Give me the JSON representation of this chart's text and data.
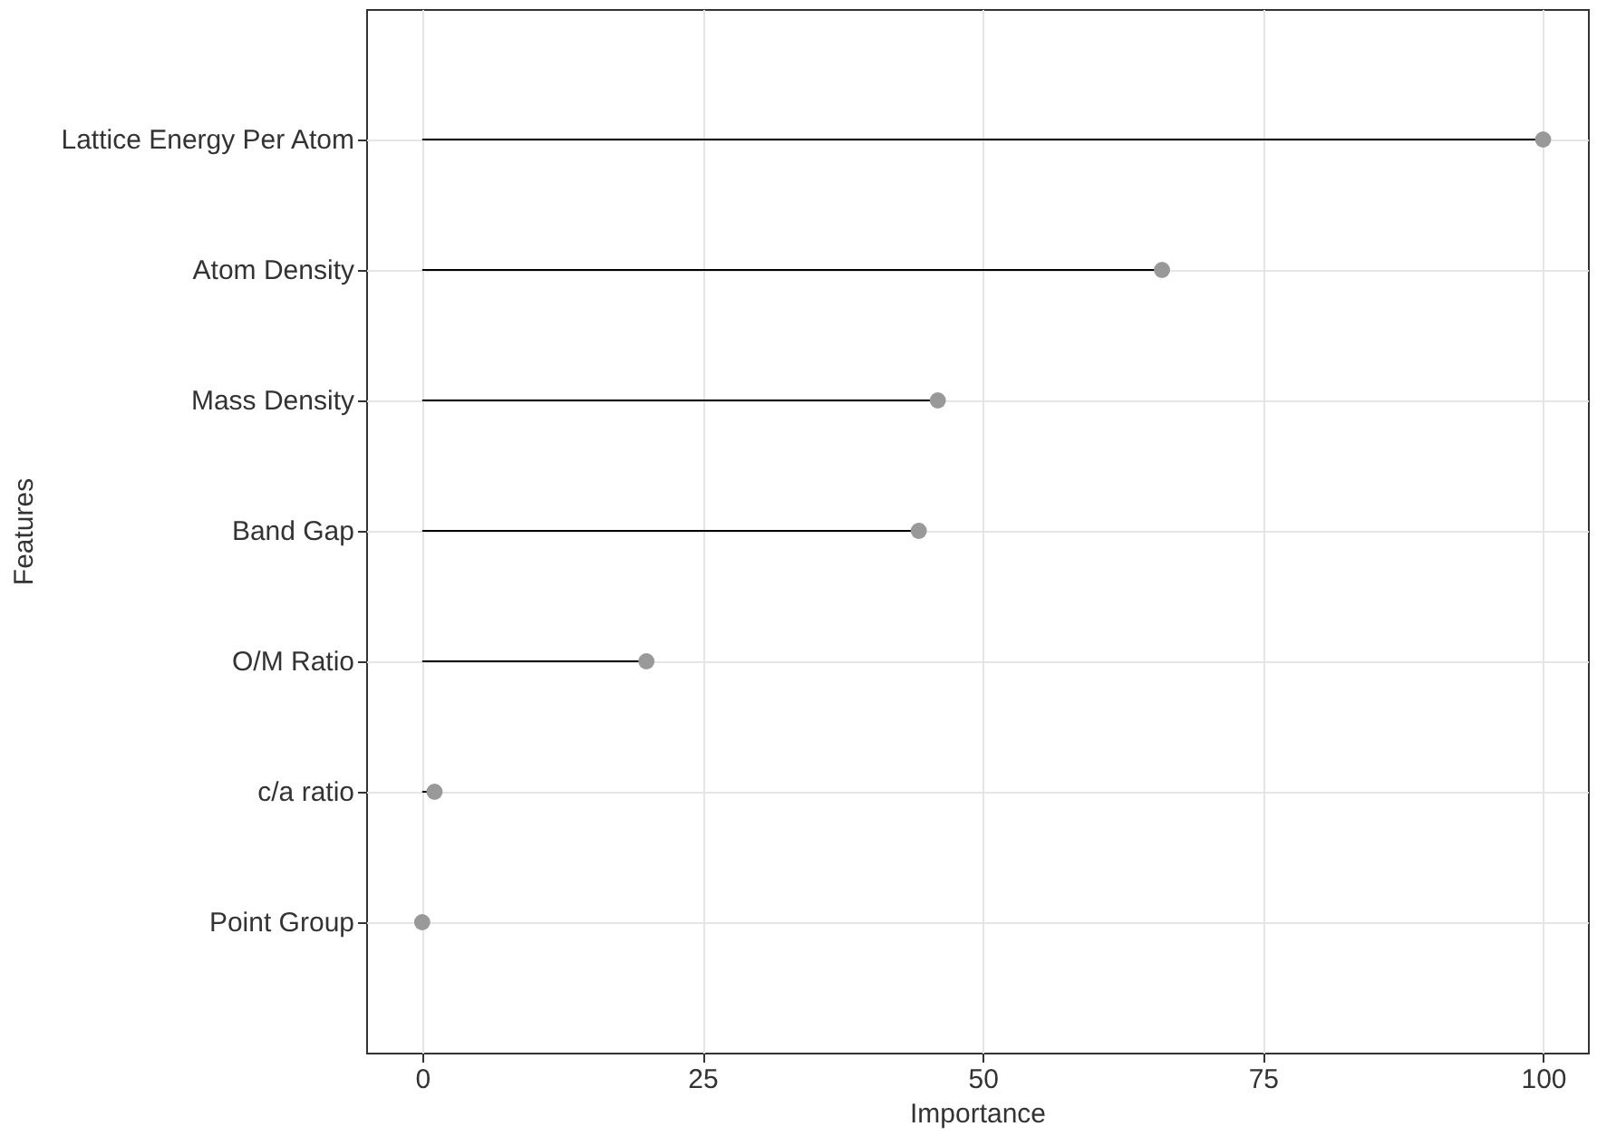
{
  "chart_data": {
    "type": "lollipop",
    "orientation": "horizontal",
    "xlabel": "Importance",
    "ylabel": "Features",
    "categories": [
      "Lattice Energy Per Atom",
      "Atom Density",
      "Mass Density",
      "Band Gap",
      "O/M Ratio",
      "c/a ratio",
      "Point Group"
    ],
    "series": [
      {
        "color": "#999999",
        "values": [
          100,
          66,
          46,
          44.3,
          20,
          1.1,
          0
        ]
      }
    ],
    "xlim": [
      -5,
      104
    ],
    "xticks": [
      0,
      25,
      50,
      75,
      100
    ],
    "grid": true,
    "marker": "circle"
  }
}
